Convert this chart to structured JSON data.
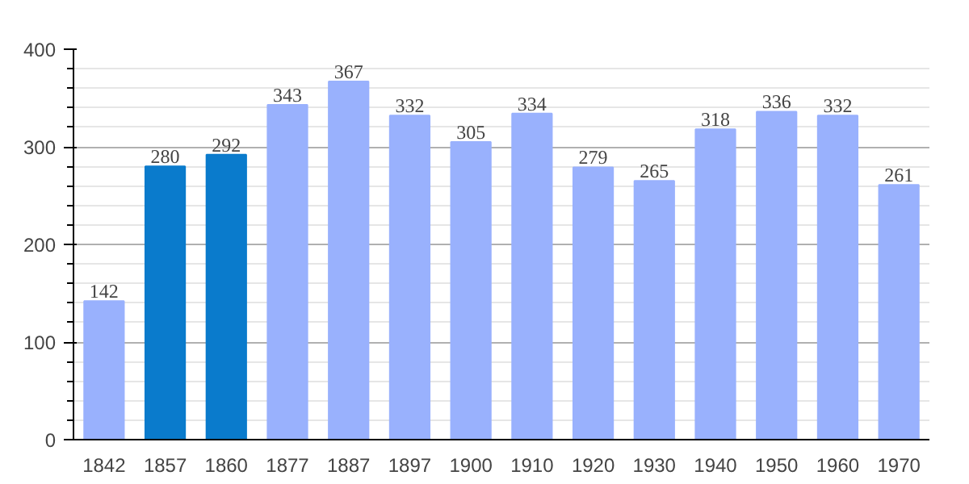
{
  "chart_data": {
    "type": "bar",
    "categories": [
      "1842",
      "1857",
      "1860",
      "1877",
      "1887",
      "1897",
      "1900",
      "1910",
      "1920",
      "1930",
      "1940",
      "1950",
      "1960",
      "1970"
    ],
    "values": [
      142,
      280,
      292,
      343,
      367,
      332,
      305,
      334,
      279,
      265,
      318,
      336,
      332,
      261
    ],
    "colors": [
      "#99b1fd",
      "#0a7bcc",
      "#0a7bcc",
      "#99b1fd",
      "#99b1fd",
      "#99b1fd",
      "#99b1fd",
      "#99b1fd",
      "#99b1fd",
      "#99b1fd",
      "#99b1fd",
      "#99b1fd",
      "#99b1fd",
      "#99b1fd"
    ],
    "ylim": [
      0,
      400
    ],
    "yticks": [
      0,
      100,
      200,
      300,
      400
    ],
    "grid": "y",
    "data_labels": true
  }
}
